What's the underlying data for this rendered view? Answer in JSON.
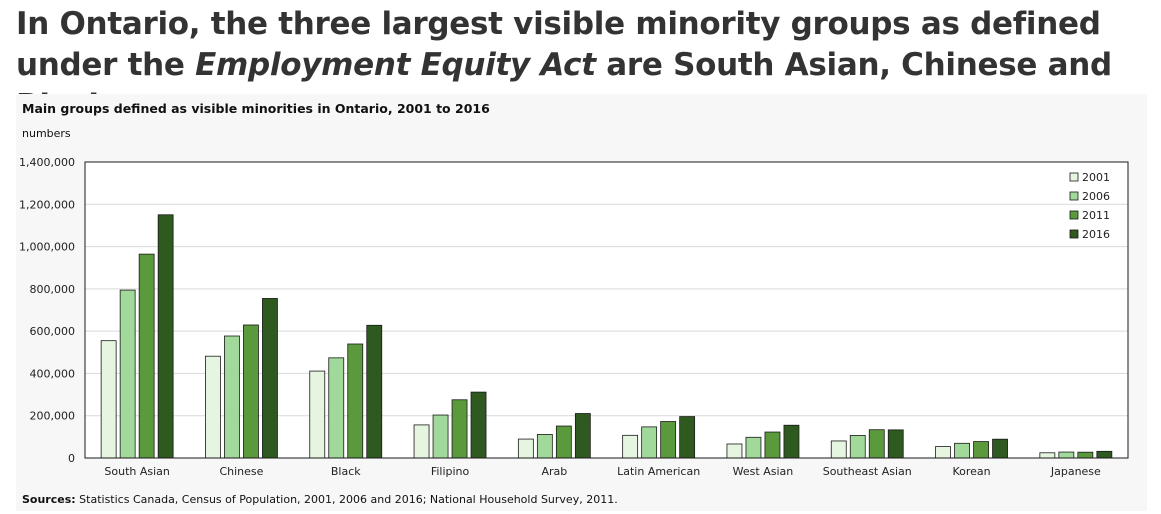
{
  "headline": {
    "part1": "In Ontario, the three largest visible minority groups as defined under the ",
    "emphasis": "Employment Equity Act",
    "part2": " are South Asian, Chinese and Black."
  },
  "source": {
    "label": "Sources:",
    "text": " Statistics Canada, Census of Population, 2001, 2006 and 2016; National Household Survey, 2011."
  },
  "chart_data": {
    "type": "bar",
    "title": "Main groups defined as visible minorities in Ontario, 2001 to 2016",
    "ylabel": "numbers",
    "xlabel": "",
    "ylim": [
      0,
      1400000
    ],
    "yticks": [
      0,
      200000,
      400000,
      600000,
      800000,
      1000000,
      1200000,
      1400000
    ],
    "ytick_labels": [
      "0",
      "200,000",
      "400,000",
      "600,000",
      "800,000",
      "1,000,000",
      "1,200,000",
      "1,400,000"
    ],
    "grid": true,
    "legend_position": "top-right",
    "categories": [
      "South Asian",
      "Chinese",
      "Black",
      "Filipino",
      "Arab",
      "Latin American",
      "West Asian",
      "Southeast Asian",
      "Korean",
      "Japanese"
    ],
    "series": [
      {
        "name": "2001",
        "color": "#e5f5e0",
        "values": [
          554870,
          481505,
          411095,
          156515,
          89540,
          107310,
          66310,
          80615,
          53950,
          24630
        ]
      },
      {
        "name": "2006",
        "color": "#a1d99b",
        "values": [
          794170,
          576980,
          473765,
          203215,
          111410,
          147140,
          97990,
          106750,
          69540,
          28080
        ]
      },
      {
        "name": "2011",
        "color": "#5a9a3c",
        "values": [
          964240,
          629140,
          539205,
          275380,
          151200,
          172560,
          122785,
          133850,
          77770,
          27480
        ]
      },
      {
        "name": "2016",
        "color": "#2f5a1f",
        "values": [
          1150415,
          754550,
          627710,
          311675,
          210430,
          195950,
          155025,
          133055,
          89010,
          31550
        ]
      }
    ]
  }
}
